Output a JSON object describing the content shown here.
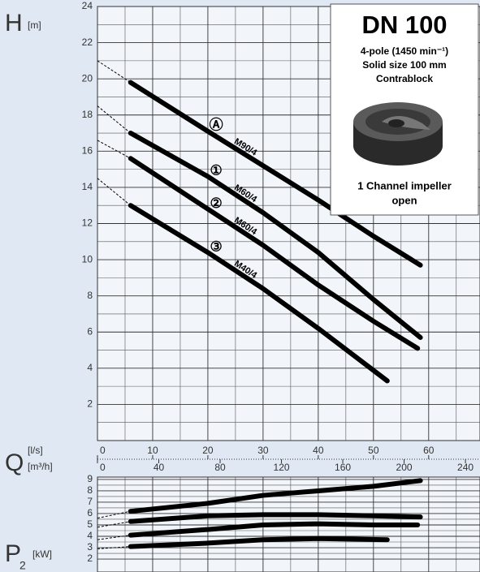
{
  "chart_data": [
    {
      "type": "line",
      "ylabel": "H",
      "ylabel_unit": "[m]",
      "xlabel": "Q",
      "xlabel_unit": "[l/s]",
      "x2label_unit": "[m³/h]",
      "xlim": [
        0,
        69.3
      ],
      "xticks": [
        0,
        10,
        20,
        30,
        40,
        50,
        60
      ],
      "x2lim": [
        0,
        249.5
      ],
      "x2ticks": [
        0,
        40,
        80,
        120,
        160,
        200,
        240
      ],
      "ylim": [
        0,
        24
      ],
      "yticks": [
        2,
        4,
        6,
        8,
        10,
        12,
        14,
        16,
        18,
        20,
        22,
        24
      ],
      "grid": true,
      "color": "#000000",
      "series": [
        {
          "marker": "Ⓐ",
          "name": "M90/4",
          "x": [
            6,
            20,
            30,
            40,
            50,
            58.5
          ],
          "values": [
            19.8,
            17.1,
            15.2,
            13.3,
            11.3,
            9.7
          ],
          "extension": {
            "x": [
              0,
              6
            ],
            "values": [
              21,
              19.8
            ]
          }
        },
        {
          "marker": "①",
          "name": "M60/4",
          "x": [
            6,
            20,
            30,
            40,
            50,
            58.5
          ],
          "values": [
            17,
            14.6,
            12.6,
            10.4,
            7.8,
            5.7
          ],
          "extension": {
            "x": [
              0,
              6
            ],
            "values": [
              18.5,
              17
            ]
          }
        },
        {
          "marker": "②",
          "name": "M60/4",
          "x": [
            6,
            20,
            30,
            40,
            50,
            58
          ],
          "values": [
            15.6,
            12.8,
            10.8,
            8.6,
            6.6,
            5.1
          ],
          "extension": {
            "x": [
              0,
              6
            ],
            "values": [
              16.6,
              15.6
            ]
          }
        },
        {
          "marker": "③",
          "name": "M40/4",
          "x": [
            6,
            20,
            30,
            40,
            52.5
          ],
          "values": [
            13,
            10.4,
            8.4,
            6.2,
            3.3
          ],
          "extension": {
            "x": [
              0,
              6
            ],
            "values": [
              14.5,
              13
            ]
          }
        }
      ]
    },
    {
      "type": "line",
      "ylabel": "P",
      "ylabel_sub": "2",
      "ylabel_unit": "[kW]",
      "xlim": [
        0,
        69.3
      ],
      "ylim": [
        0.86,
        9.21
      ],
      "yticks": [
        2,
        3,
        4,
        5,
        6,
        7,
        8,
        9
      ],
      "grid": true,
      "color": "#000000",
      "series": [
        {
          "x": [
            6,
            20,
            30,
            40,
            50,
            58.5
          ],
          "values": [
            6.2,
            6.9,
            7.6,
            8.0,
            8.4,
            8.9
          ],
          "extension": {
            "x": [
              0,
              6
            ],
            "values": [
              5.6,
              6.2
            ]
          }
        },
        {
          "x": [
            6,
            20,
            30,
            40,
            50,
            58.5
          ],
          "values": [
            5.3,
            5.8,
            5.9,
            5.9,
            5.8,
            5.7
          ],
          "extension": {
            "x": [
              0,
              6
            ],
            "values": [
              4.8,
              5.3
            ]
          }
        },
        {
          "x": [
            6,
            20,
            30,
            40,
            50,
            58
          ],
          "values": [
            4.1,
            4.6,
            5.0,
            5.1,
            5.0,
            5.0
          ],
          "extension": {
            "x": [
              0,
              6
            ],
            "values": [
              3.7,
              4.1
            ]
          }
        },
        {
          "x": [
            6,
            20,
            30,
            40,
            52.5
          ],
          "values": [
            3.1,
            3.4,
            3.7,
            3.8,
            3.7
          ],
          "extension": {
            "x": [
              0,
              6
            ],
            "values": [
              2.9,
              3.1
            ]
          }
        }
      ]
    }
  ],
  "info_box": {
    "title": "DN 100",
    "lines": [
      "4-pole (1450 min⁻¹)",
      "Solid size 100 mm",
      "Contrablock"
    ],
    "caption": [
      "1 Channel impeller",
      "open"
    ]
  }
}
